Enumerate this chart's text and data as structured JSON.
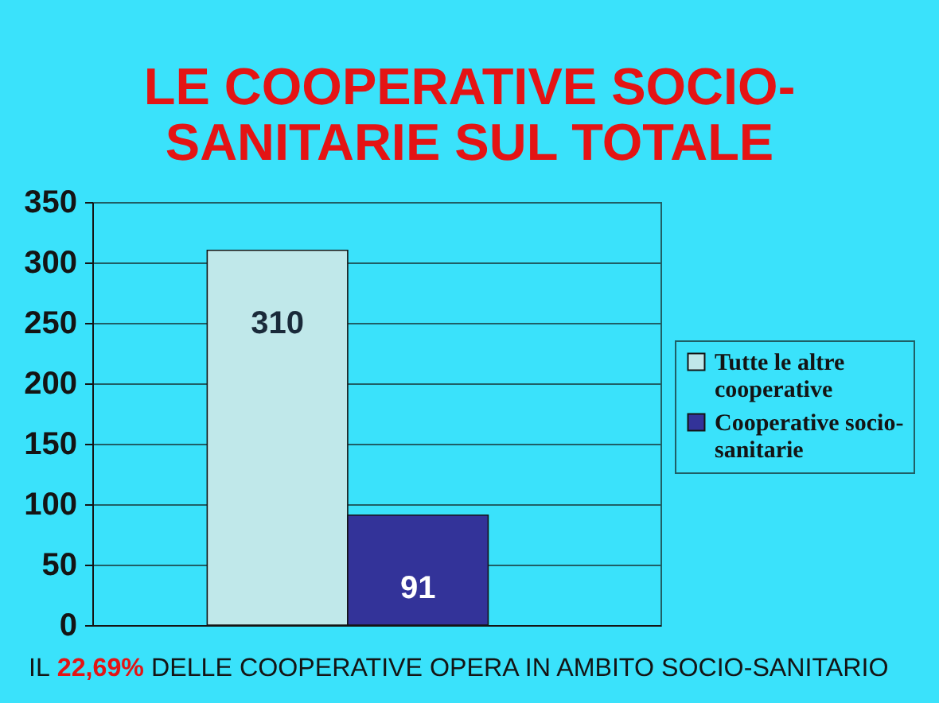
{
  "chart_data": {
    "type": "bar",
    "title": "LE COOPERATIVE SOCIO-\nSANITARIE SUL TOTALE",
    "categories": [
      null
    ],
    "series": [
      {
        "name": "Tutte le altre cooperative",
        "color": "#c0e8ea",
        "values": [
          310
        ]
      },
      {
        "name": "Cooperative socio-sanitarie",
        "color": "#333399",
        "values": [
          91
        ]
      }
    ],
    "ylim": [
      0,
      350
    ],
    "yticks": [
      0,
      50,
      100,
      150,
      200,
      250,
      300,
      350
    ],
    "grid": "y",
    "legend": "right",
    "data_labels": true,
    "tick_labels": "y",
    "annotations": [
      "IL",
      "22,69%",
      "DELLE COOPERATIVE OPERA IN AMBITO SOCIO-SANITARIO"
    ]
  }
}
